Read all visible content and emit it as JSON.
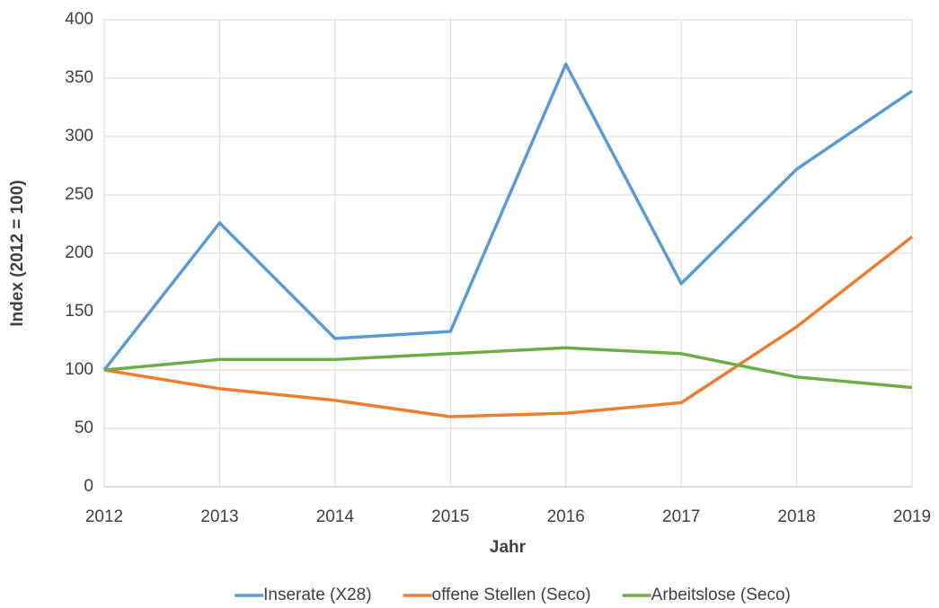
{
  "chart_data": {
    "type": "line",
    "x_label": "Jahr",
    "y_label": "Index (2012 = 100)",
    "x": [
      2012,
      2013,
      2014,
      2015,
      2016,
      2017,
      2018,
      2019
    ],
    "xlim": [
      2012,
      2019
    ],
    "xticks": [
      2012,
      2013,
      2014,
      2015,
      2016,
      2017,
      2018,
      2019
    ],
    "ylim": [
      0,
      400
    ],
    "yticks": [
      0,
      50,
      100,
      150,
      200,
      250,
      300,
      350,
      400
    ],
    "grid": true,
    "legend": "bottom",
    "series": [
      {
        "name": "Inserate (X28)",
        "color": "#5b9bd5",
        "values": [
          100,
          226,
          127,
          133,
          362,
          174,
          272,
          339
        ]
      },
      {
        "name": "offene Stellen (Seco)",
        "color": "#ed7d31",
        "values": [
          100,
          84,
          74,
          60,
          63,
          72,
          137,
          214
        ]
      },
      {
        "name": "Arbeitslose (Seco)",
        "color": "#70ad47",
        "values": [
          100,
          109,
          109,
          114,
          119,
          114,
          94,
          85
        ]
      }
    ]
  }
}
